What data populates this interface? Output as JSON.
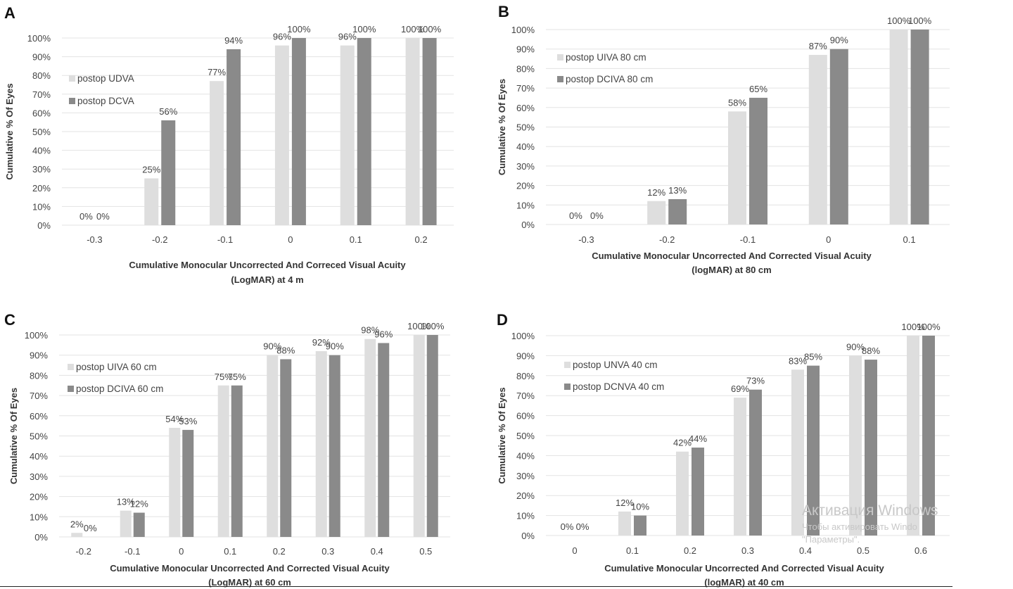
{
  "colors": {
    "series1": "#dedede",
    "series2": "#8a8a8a"
  },
  "watermark": {
    "line1": "Активация Windows",
    "line2": "Чтобы активировать Windo",
    "line3": "\"Параметры\"."
  },
  "chart_data": [
    {
      "panel": "A",
      "type": "bar",
      "categories": [
        "-0.3",
        "-0.2",
        "-0.1",
        "0",
        "0.1",
        "0.2"
      ],
      "series": [
        {
          "name": "postop UDVA",
          "values": [
            0,
            25,
            77,
            96,
            96,
            100
          ],
          "labels": [
            "0%",
            "25%",
            "77%",
            "96%",
            "96%",
            "100%"
          ]
        },
        {
          "name": "postop DCVA",
          "values": [
            0,
            56,
            94,
            100,
            100,
            100
          ],
          "labels": [
            "0%",
            "56%",
            "94%",
            "100%",
            "100%",
            "100%"
          ]
        }
      ],
      "ylabel": "Cumulative % Of Eyes",
      "xlabel": [
        "Cumulative Monocular Uncorrected And Correced Visual Acuity",
        "(LogMAR) at 4 m"
      ],
      "yticks": [
        "0%",
        "10%",
        "20%",
        "30%",
        "40%",
        "50%",
        "60%",
        "70%",
        "80%",
        "90%",
        "100%"
      ],
      "ylim": [
        0,
        100
      ],
      "grid": true,
      "legend": "left"
    },
    {
      "panel": "B",
      "type": "bar",
      "categories": [
        "-0.3",
        "-0.2",
        "-0.1",
        "0",
        "0.1"
      ],
      "series": [
        {
          "name": "postop UIVA 80 cm",
          "values": [
            0,
            12,
            58,
            87,
            100
          ],
          "labels": [
            "0%",
            "12%",
            "58%",
            "87%",
            "100%"
          ]
        },
        {
          "name": "postop DCIVA 80 cm",
          "values": [
            0,
            13,
            65,
            90,
            100
          ],
          "labels": [
            "0%",
            "13%",
            "65%",
            "90%",
            "100%"
          ]
        }
      ],
      "ylabel": "Cumulative % Of Eyes",
      "xlabel": [
        "Cumulative Monocular Uncorrected And Corrected Visual Acuity",
        "(logMAR) at 80 cm"
      ],
      "yticks": [
        "0%",
        "10%",
        "20%",
        "30%",
        "40%",
        "50%",
        "60%",
        "70%",
        "80%",
        "90%",
        "100%"
      ],
      "ylim": [
        0,
        100
      ],
      "grid": true,
      "legend": "top-left"
    },
    {
      "panel": "C",
      "type": "bar",
      "categories": [
        "-0.2",
        "-0.1",
        "0",
        "0.1",
        "0.2",
        "0.3",
        "0.4",
        "0.5"
      ],
      "series": [
        {
          "name": "postop UIVA 60 cm",
          "values": [
            2,
            13,
            54,
            75,
            90,
            92,
            98,
            100
          ],
          "labels": [
            "2%",
            "13%",
            "54%",
            "75%",
            "90%",
            "92%",
            "98%",
            "100%"
          ]
        },
        {
          "name": "postop DCIVA 60 cm",
          "values": [
            0,
            12,
            53,
            75,
            88,
            90,
            96,
            100
          ],
          "labels": [
            "0%",
            "12%",
            "53%",
            "75%",
            "88%",
            "90%",
            "96%",
            "100%"
          ]
        }
      ],
      "ylabel": "Cumulative % Of Eyes",
      "xlabel": [
        "Cumulative Monocular Uncorrected And Corrected Visual Acuity",
        "(LogMAR) at 60 cm"
      ],
      "yticks": [
        "0%",
        "10%",
        "20%",
        "30%",
        "40%",
        "50%",
        "60%",
        "70%",
        "80%",
        "90%",
        "100%"
      ],
      "ylim": [
        0,
        100
      ],
      "grid": true,
      "legend": "left"
    },
    {
      "panel": "D",
      "type": "bar",
      "categories": [
        "0",
        "0.1",
        "0.2",
        "0.3",
        "0.4",
        "0.5",
        "0.6"
      ],
      "series": [
        {
          "name": "postop UNVA 40 cm",
          "values": [
            0,
            12,
            42,
            69,
            83,
            90,
            100
          ],
          "labels": [
            "0%",
            "12%",
            "42%",
            "69%",
            "83%",
            "90%",
            "100%"
          ]
        },
        {
          "name": "postop DCNVA 40 cm",
          "values": [
            0,
            10,
            44,
            73,
            85,
            88,
            100
          ],
          "labels": [
            "0%",
            "10%",
            "44%",
            "73%",
            "85%",
            "88%",
            "100%"
          ]
        }
      ],
      "ylabel": "Cumulative % Of Eyes",
      "xlabel": [
        "Cumulative Monocular Uncorrected And Corrected Visual Acuity",
        "(logMAR) at 40 cm"
      ],
      "yticks": [
        "0%",
        "10%",
        "20%",
        "30%",
        "40%",
        "50%",
        "60%",
        "70%",
        "80%",
        "90%",
        "100%"
      ],
      "ylim": [
        0,
        100
      ],
      "grid": true,
      "legend": "left"
    }
  ]
}
